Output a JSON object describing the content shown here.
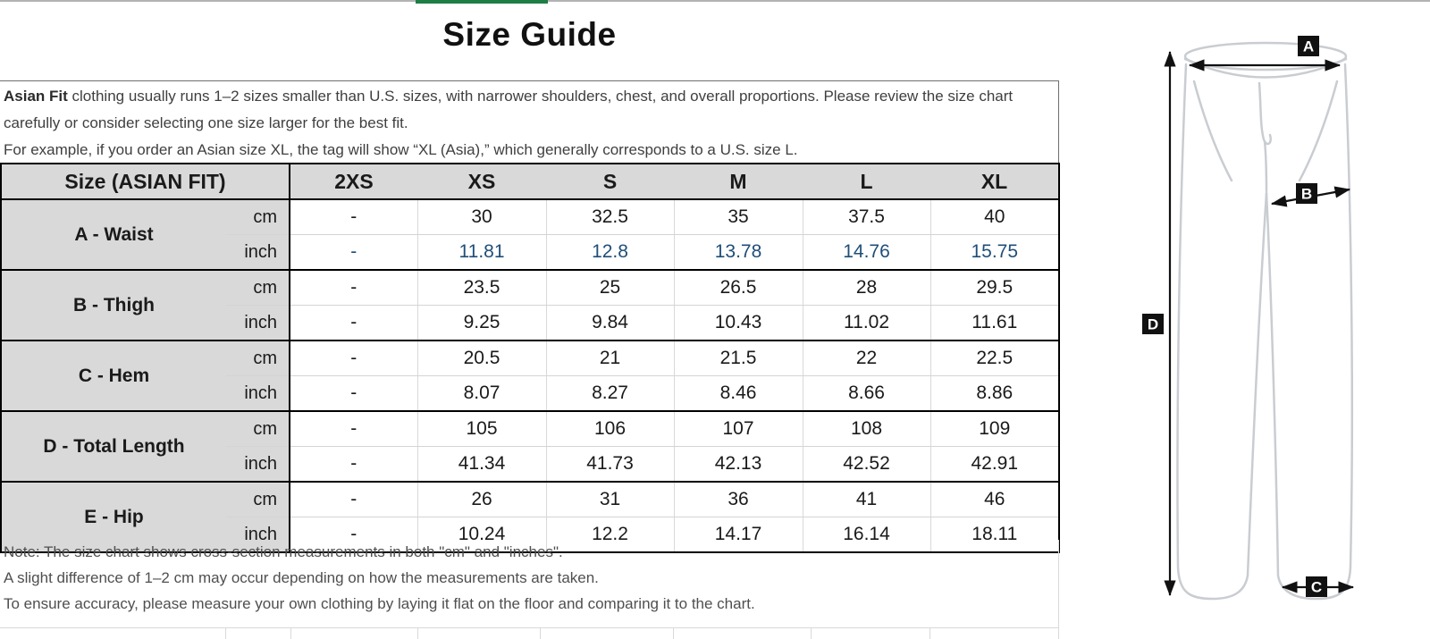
{
  "page": {
    "title": "Size Guide",
    "tab_indicator_color": "#1e7e45"
  },
  "intro": {
    "bold_lead": "Asian Fit",
    "line1_rest": " clothing usually runs 1–2 sizes smaller than U.S. sizes, with narrower shoulders, chest, and overall proportions. Please review the size chart carefully or consider selecting one size larger for the best fit.",
    "line2": "For example, if you order an Asian size XL, the tag will show “XL (Asia),” which generally corresponds to a U.S. size L."
  },
  "table": {
    "header": {
      "label": "Size (ASIAN FIT)",
      "sizes": [
        "2XS",
        "XS",
        "S",
        "M",
        "L",
        "XL"
      ]
    },
    "unit_cm": "cm",
    "unit_inch": "inch",
    "rows": [
      {
        "label": "A - Waist",
        "cm": [
          "-",
          "30",
          "32.5",
          "35",
          "37.5",
          "40"
        ],
        "inch": [
          "-",
          "11.81",
          "12.8",
          "13.78",
          "14.76",
          "15.75"
        ],
        "inch_highlight": true
      },
      {
        "label": "B - Thigh",
        "cm": [
          "-",
          "23.5",
          "25",
          "26.5",
          "28",
          "29.5"
        ],
        "inch": [
          "-",
          "9.25",
          "9.84",
          "10.43",
          "11.02",
          "11.61"
        ],
        "inch_highlight": false
      },
      {
        "label": "C - Hem",
        "cm": [
          "-",
          "20.5",
          "21",
          "21.5",
          "22",
          "22.5"
        ],
        "inch": [
          "-",
          "8.07",
          "8.27",
          "8.46",
          "8.66",
          "8.86"
        ],
        "inch_highlight": false
      },
      {
        "label": "D - Total Length",
        "cm": [
          "-",
          "105",
          "106",
          "107",
          "108",
          "109"
        ],
        "inch": [
          "-",
          "41.34",
          "41.73",
          "42.13",
          "42.52",
          "42.91"
        ],
        "inch_highlight": false
      },
      {
        "label": "E - Hip",
        "cm": [
          "-",
          "26",
          "31",
          "36",
          "41",
          "46"
        ],
        "inch": [
          "-",
          "10.24",
          "12.2",
          "14.17",
          "16.14",
          "18.11"
        ],
        "inch_highlight": false
      }
    ],
    "colors": {
      "header_bg": "#d9d9d9",
      "inch_highlight": "#1F4E79",
      "border_dark": "#000000",
      "border_light": "#d9d9d9"
    }
  },
  "notes": {
    "line1": "Note: The size chart shows cross-section measurements in both \"cm\" and \"inches\".",
    "line2": "A slight difference of 1–2 cm may occur depending on how the measurements are taken.",
    "line3": "To ensure accuracy, please measure your own clothing by laying it flat on the floor and comparing it to the chart."
  },
  "diagram": {
    "labels": [
      "A",
      "B",
      "C",
      "D"
    ]
  }
}
